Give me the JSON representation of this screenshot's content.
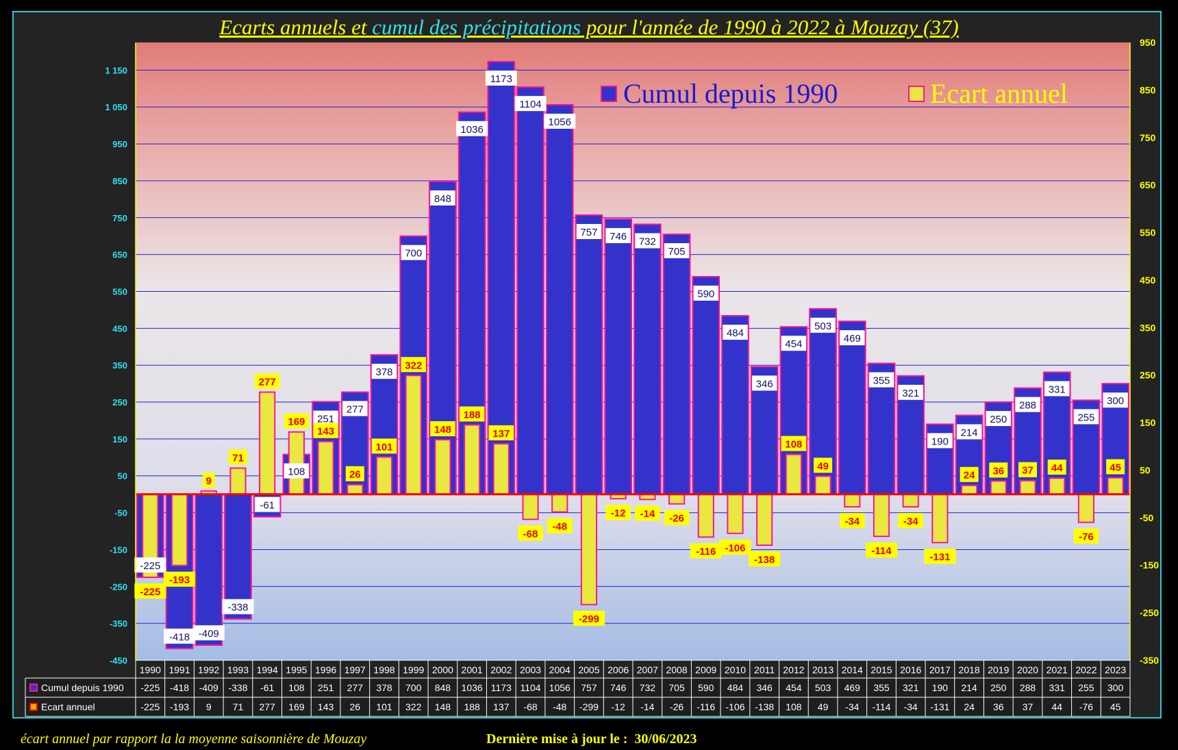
{
  "title": {
    "part1": "Ecarts annuels et ",
    "part2": "cumul des précipitations",
    "part3": " pour l'année de 1990 à 2022 à Mouzay (37)"
  },
  "footer": {
    "note": "écart annuel par rapport la la moyenne saisonnière de Mouzay",
    "update_label": "Dernière mise à jour le :",
    "update_date": "30/06/2023"
  },
  "chart_data": {
    "type": "bar",
    "categories": [
      "1990",
      "1991",
      "1992",
      "1993",
      "1994",
      "1995",
      "1996",
      "1997",
      "1998",
      "1999",
      "2000",
      "2001",
      "2002",
      "2003",
      "2004",
      "2005",
      "2006",
      "2007",
      "2008",
      "2009",
      "2010",
      "2011",
      "2012",
      "2013",
      "2014",
      "2015",
      "2016",
      "2017",
      "2018",
      "2019",
      "2020",
      "2021",
      "2022",
      "2023"
    ],
    "series": [
      {
        "name": "Cumul depuis 1990",
        "axis": "left",
        "values": [
          -225,
          -418,
          -409,
          -338,
          -61,
          108,
          251,
          277,
          378,
          700,
          848,
          1036,
          1173,
          1104,
          1056,
          757,
          746,
          732,
          705,
          590,
          484,
          346,
          454,
          503,
          469,
          355,
          321,
          190,
          214,
          250,
          288,
          331,
          255,
          300
        ]
      },
      {
        "name": "Ecart annuel",
        "axis": "right",
        "values": [
          -225,
          -193,
          9,
          71,
          277,
          169,
          143,
          26,
          101,
          322,
          148,
          188,
          137,
          -68,
          -48,
          -299,
          -12,
          -14,
          -26,
          -116,
          -106,
          -138,
          108,
          49,
          -34,
          -114,
          -34,
          -131,
          24,
          36,
          37,
          44,
          -76,
          45
        ]
      }
    ],
    "y_left": {
      "min": -450,
      "max": 1225,
      "ticks": [
        -450,
        -350,
        -250,
        -150,
        -50,
        50,
        150,
        250,
        350,
        450,
        550,
        650,
        750,
        850,
        950,
        1050,
        1150
      ],
      "tick_labels": [
        "-450",
        "-350",
        "-250",
        "-150",
        "-50",
        "50",
        "150",
        "250",
        "350",
        "450",
        "550",
        "650",
        "750",
        "850",
        "950",
        "1 050",
        "1 150"
      ]
    },
    "y_right": {
      "min": -350,
      "max": 950,
      "ticks": [
        -350,
        -250,
        -150,
        -50,
        50,
        150,
        250,
        350,
        450,
        550,
        650,
        750,
        850,
        950
      ]
    },
    "legend_position": "top-right",
    "data_table": true,
    "colors": {
      "cumul": "#3333cc",
      "ecart": "#e8e840",
      "outline": "#ff1493",
      "left_axis_text": "#33e0ee",
      "right_axis_text": "#ffff00",
      "zero_line": "#ff0000"
    }
  }
}
